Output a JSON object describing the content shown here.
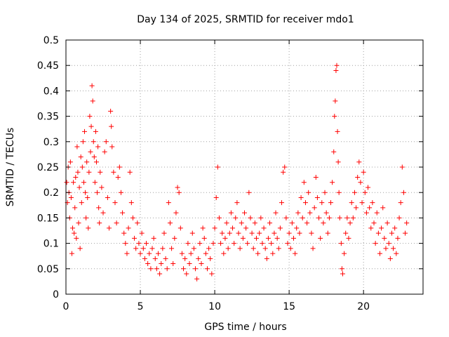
{
  "chart_data": {
    "type": "scatter",
    "title": "Day 134 of 2025, SRMTID for receiver mdo1",
    "xlabel": "GPS time / hours",
    "ylabel": "SRMTID / TECUs",
    "xlim": [
      0,
      24
    ],
    "ylim": [
      0,
      0.5
    ],
    "xticks": [
      0,
      5,
      10,
      15,
      20
    ],
    "xtick_labels": [
      "0",
      "5",
      "10",
      "15",
      "20"
    ],
    "yticks": [
      0,
      0.05,
      0.1,
      0.15,
      0.2,
      0.25,
      0.3,
      0.35,
      0.4,
      0.45,
      0.5
    ],
    "ytick_labels": [
      "0",
      "0.05",
      "0.1",
      "0.15",
      "0.2",
      "0.25",
      "0.3",
      "0.35",
      "0.4",
      "0.45",
      "0.5"
    ],
    "grid": true,
    "marker": "+",
    "color": "#ff0000",
    "series": [
      {
        "name": "SRMTID",
        "points": [
          [
            0.05,
            0.22
          ],
          [
            0.1,
            0.18
          ],
          [
            0.15,
            0.25
          ],
          [
            0.2,
            0.2
          ],
          [
            0.25,
            0.15
          ],
          [
            0.3,
            0.26
          ],
          [
            0.35,
            0.19
          ],
          [
            0.4,
            0.08
          ],
          [
            0.45,
            0.13
          ],
          [
            0.5,
            0.22
          ],
          [
            0.55,
            0.12
          ],
          [
            0.6,
            0.17
          ],
          [
            0.65,
            0.23
          ],
          [
            0.7,
            0.11
          ],
          [
            0.75,
            0.29
          ],
          [
            0.8,
            0.24
          ],
          [
            0.85,
            0.14
          ],
          [
            0.9,
            0.21
          ],
          [
            0.95,
            0.09
          ],
          [
            1.0,
            0.27
          ],
          [
            1.05,
            0.18
          ],
          [
            1.1,
            0.25
          ],
          [
            1.15,
            0.3
          ],
          [
            1.2,
            0.22
          ],
          [
            1.25,
            0.32
          ],
          [
            1.3,
            0.2
          ],
          [
            1.35,
            0.15
          ],
          [
            1.4,
            0.26
          ],
          [
            1.45,
            0.19
          ],
          [
            1.5,
            0.13
          ],
          [
            1.55,
            0.24
          ],
          [
            1.6,
            0.35
          ],
          [
            1.65,
            0.28
          ],
          [
            1.7,
            0.33
          ],
          [
            1.75,
            0.41
          ],
          [
            1.8,
            0.38
          ],
          [
            1.85,
            0.3
          ],
          [
            1.9,
            0.27
          ],
          [
            1.95,
            0.22
          ],
          [
            2.0,
            0.32
          ],
          [
            2.05,
            0.26
          ],
          [
            2.1,
            0.2
          ],
          [
            2.15,
            0.29
          ],
          [
            2.2,
            0.17
          ],
          [
            2.25,
            0.14
          ],
          [
            2.3,
            0.24
          ],
          [
            2.4,
            0.21
          ],
          [
            2.5,
            0.16
          ],
          [
            2.6,
            0.28
          ],
          [
            2.7,
            0.3
          ],
          [
            2.8,
            0.19
          ],
          [
            2.9,
            0.13
          ],
          [
            3.0,
            0.36
          ],
          [
            3.05,
            0.33
          ],
          [
            3.1,
            0.29
          ],
          [
            3.2,
            0.24
          ],
          [
            3.3,
            0.18
          ],
          [
            3.4,
            0.14
          ],
          [
            3.5,
            0.23
          ],
          [
            3.6,
            0.25
          ],
          [
            3.7,
            0.2
          ],
          [
            3.8,
            0.16
          ],
          [
            3.9,
            0.12
          ],
          [
            4.0,
            0.1
          ],
          [
            4.1,
            0.08
          ],
          [
            4.2,
            0.13
          ],
          [
            4.3,
            0.24
          ],
          [
            4.4,
            0.18
          ],
          [
            4.5,
            0.15
          ],
          [
            4.6,
            0.11
          ],
          [
            4.7,
            0.09
          ],
          [
            4.8,
            0.14
          ],
          [
            4.9,
            0.1
          ],
          [
            5.0,
            0.08
          ],
          [
            5.1,
            0.12
          ],
          [
            5.2,
            0.09
          ],
          [
            5.3,
            0.07
          ],
          [
            5.4,
            0.1
          ],
          [
            5.5,
            0.06
          ],
          [
            5.6,
            0.08
          ],
          [
            5.7,
            0.05
          ],
          [
            5.8,
            0.09
          ],
          [
            5.9,
            0.11
          ],
          [
            6.0,
            0.07
          ],
          [
            6.1,
            0.05
          ],
          [
            6.2,
            0.08
          ],
          [
            6.3,
            0.04
          ],
          [
            6.4,
            0.06
          ],
          [
            6.5,
            0.09
          ],
          [
            6.6,
            0.12
          ],
          [
            6.7,
            0.07
          ],
          [
            6.8,
            0.05
          ],
          [
            6.9,
            0.18
          ],
          [
            7.0,
            0.14
          ],
          [
            7.1,
            0.09
          ],
          [
            7.2,
            0.06
          ],
          [
            7.3,
            0.11
          ],
          [
            7.4,
            0.16
          ],
          [
            7.5,
            0.21
          ],
          [
            7.6,
            0.2
          ],
          [
            7.7,
            0.13
          ],
          [
            7.8,
            0.08
          ],
          [
            7.9,
            0.05
          ],
          [
            8.0,
            0.07
          ],
          [
            8.1,
            0.04
          ],
          [
            8.2,
            0.1
          ],
          [
            8.3,
            0.06
          ],
          [
            8.4,
            0.08
          ],
          [
            8.5,
            0.12
          ],
          [
            8.6,
            0.09
          ],
          [
            8.7,
            0.05
          ],
          [
            8.8,
            0.03
          ],
          [
            8.9,
            0.07
          ],
          [
            9.0,
            0.1
          ],
          [
            9.1,
            0.06
          ],
          [
            9.2,
            0.13
          ],
          [
            9.3,
            0.11
          ],
          [
            9.4,
            0.08
          ],
          [
            9.5,
            0.05
          ],
          [
            9.6,
            0.09
          ],
          [
            9.7,
            0.07
          ],
          [
            9.8,
            0.04
          ],
          [
            9.9,
            0.1
          ],
          [
            10.0,
            0.13
          ],
          [
            10.1,
            0.19
          ],
          [
            10.2,
            0.25
          ],
          [
            10.3,
            0.15
          ],
          [
            10.4,
            0.1
          ],
          [
            10.5,
            0.12
          ],
          [
            10.6,
            0.08
          ],
          [
            10.7,
            0.11
          ],
          [
            10.8,
            0.14
          ],
          [
            10.9,
            0.09
          ],
          [
            11.0,
            0.12
          ],
          [
            11.1,
            0.16
          ],
          [
            11.2,
            0.13
          ],
          [
            11.3,
            0.1
          ],
          [
            11.4,
            0.15
          ],
          [
            11.5,
            0.18
          ],
          [
            11.6,
            0.12
          ],
          [
            11.7,
            0.09
          ],
          [
            11.8,
            0.14
          ],
          [
            11.9,
            0.11
          ],
          [
            12.0,
            0.16
          ],
          [
            12.1,
            0.13
          ],
          [
            12.2,
            0.1
          ],
          [
            12.3,
            0.2
          ],
          [
            12.4,
            0.15
          ],
          [
            12.5,
            0.12
          ],
          [
            12.6,
            0.09
          ],
          [
            12.7,
            0.14
          ],
          [
            12.8,
            0.11
          ],
          [
            12.9,
            0.08
          ],
          [
            13.0,
            0.12
          ],
          [
            13.1,
            0.15
          ],
          [
            13.2,
            0.1
          ],
          [
            13.3,
            0.13
          ],
          [
            13.4,
            0.09
          ],
          [
            13.5,
            0.07
          ],
          [
            13.6,
            0.11
          ],
          [
            13.7,
            0.14
          ],
          [
            13.8,
            0.1
          ],
          [
            13.9,
            0.08
          ],
          [
            14.0,
            0.12
          ],
          [
            14.1,
            0.16
          ],
          [
            14.2,
            0.11
          ],
          [
            14.3,
            0.09
          ],
          [
            14.4,
            0.13
          ],
          [
            14.5,
            0.18
          ],
          [
            14.6,
            0.24
          ],
          [
            14.7,
            0.25
          ],
          [
            14.8,
            0.15
          ],
          [
            14.9,
            0.1
          ],
          [
            15.0,
            0.12
          ],
          [
            15.1,
            0.09
          ],
          [
            15.2,
            0.14
          ],
          [
            15.3,
            0.11
          ],
          [
            15.4,
            0.08
          ],
          [
            15.5,
            0.13
          ],
          [
            15.6,
            0.16
          ],
          [
            15.7,
            0.12
          ],
          [
            15.8,
            0.19
          ],
          [
            15.9,
            0.15
          ],
          [
            16.0,
            0.22
          ],
          [
            16.1,
            0.18
          ],
          [
            16.2,
            0.14
          ],
          [
            16.3,
            0.2
          ],
          [
            16.4,
            0.16
          ],
          [
            16.5,
            0.12
          ],
          [
            16.6,
            0.09
          ],
          [
            16.7,
            0.17
          ],
          [
            16.8,
            0.23
          ],
          [
            16.9,
            0.19
          ],
          [
            17.0,
            0.15
          ],
          [
            17.1,
            0.11
          ],
          [
            17.2,
            0.18
          ],
          [
            17.3,
            0.14
          ],
          [
            17.4,
            0.2
          ],
          [
            17.5,
            0.16
          ],
          [
            17.6,
            0.12
          ],
          [
            17.7,
            0.15
          ],
          [
            17.8,
            0.18
          ],
          [
            17.9,
            0.22
          ],
          [
            18.0,
            0.28
          ],
          [
            18.05,
            0.35
          ],
          [
            18.1,
            0.38
          ],
          [
            18.15,
            0.44
          ],
          [
            18.2,
            0.45
          ],
          [
            18.25,
            0.32
          ],
          [
            18.3,
            0.26
          ],
          [
            18.35,
            0.2
          ],
          [
            18.4,
            0.15
          ],
          [
            18.5,
            0.1
          ],
          [
            18.55,
            0.05
          ],
          [
            18.6,
            0.04
          ],
          [
            18.7,
            0.08
          ],
          [
            18.8,
            0.12
          ],
          [
            18.9,
            0.15
          ],
          [
            19.0,
            0.11
          ],
          [
            19.1,
            0.14
          ],
          [
            19.2,
            0.18
          ],
          [
            19.3,
            0.15
          ],
          [
            19.4,
            0.2
          ],
          [
            19.5,
            0.17
          ],
          [
            19.6,
            0.23
          ],
          [
            19.7,
            0.26
          ],
          [
            19.8,
            0.22
          ],
          [
            19.9,
            0.18
          ],
          [
            20.0,
            0.24
          ],
          [
            20.1,
            0.2
          ],
          [
            20.2,
            0.16
          ],
          [
            20.3,
            0.21
          ],
          [
            20.4,
            0.17
          ],
          [
            20.5,
            0.13
          ],
          [
            20.6,
            0.18
          ],
          [
            20.7,
            0.14
          ],
          [
            20.8,
            0.1
          ],
          [
            20.9,
            0.16
          ],
          [
            21.0,
            0.12
          ],
          [
            21.1,
            0.08
          ],
          [
            21.2,
            0.13
          ],
          [
            21.3,
            0.17
          ],
          [
            21.4,
            0.11
          ],
          [
            21.5,
            0.09
          ],
          [
            21.6,
            0.14
          ],
          [
            21.7,
            0.1
          ],
          [
            21.8,
            0.07
          ],
          [
            21.9,
            0.12
          ],
          [
            22.0,
            0.09
          ],
          [
            22.1,
            0.13
          ],
          [
            22.2,
            0.08
          ],
          [
            22.3,
            0.11
          ],
          [
            22.4,
            0.15
          ],
          [
            22.5,
            0.18
          ],
          [
            22.6,
            0.25
          ],
          [
            22.7,
            0.2
          ],
          [
            22.8,
            0.12
          ],
          [
            22.9,
            0.14
          ]
        ]
      }
    ]
  }
}
